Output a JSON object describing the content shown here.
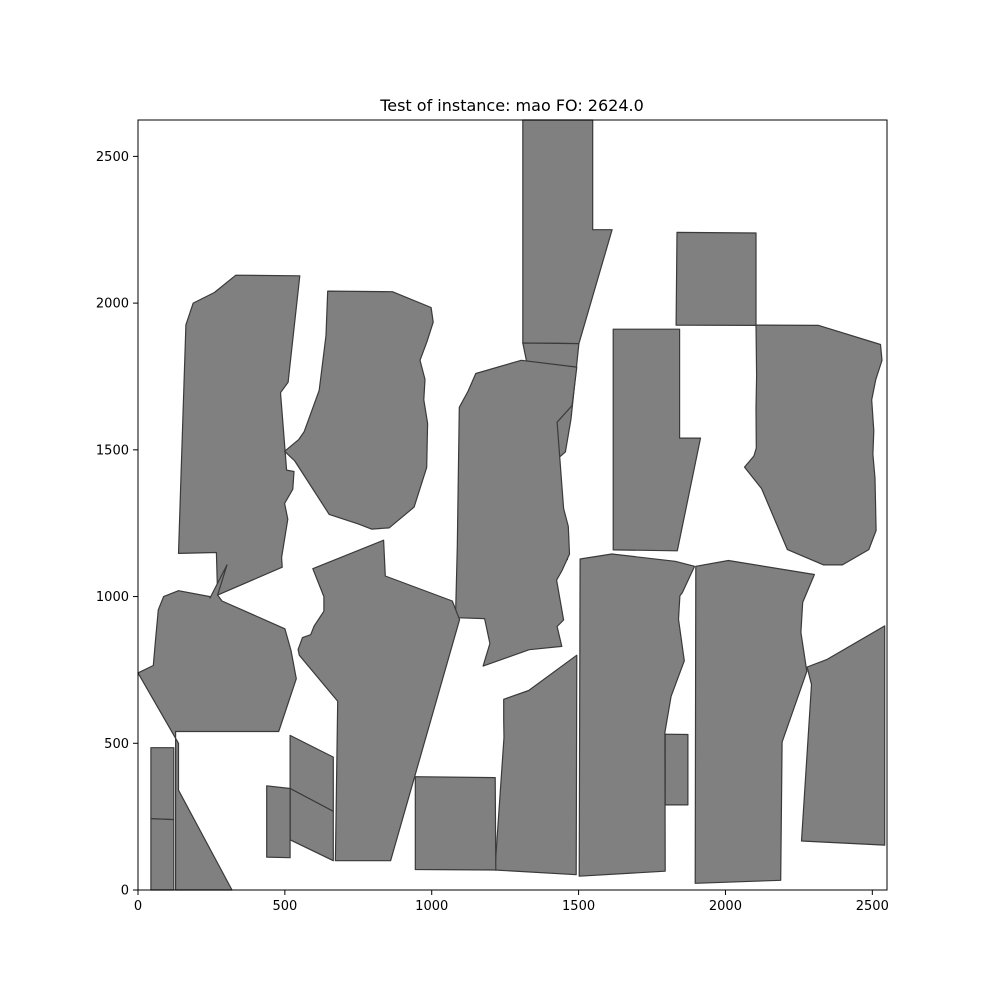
{
  "chart_data": {
    "type": "polygon",
    "title": "Test of instance: mao  FO: 2624.0",
    "xlabel": "",
    "ylabel": "",
    "xlim": [
      0,
      2550
    ],
    "ylim": [
      0,
      2624
    ],
    "grid": false,
    "x_ticks": [
      0,
      500,
      1000,
      1500,
      2000,
      2500
    ],
    "y_ticks": [
      0,
      500,
      1000,
      1500,
      2000,
      2500
    ],
    "x_tick_labels": [
      "0",
      "500",
      "1000",
      "1500",
      "2000",
      "2500"
    ],
    "y_tick_labels": [
      "0",
      "500",
      "1000",
      "1500",
      "2000",
      "2500"
    ],
    "colors": {
      "fill": "#808080",
      "edge": "#3a3a3a",
      "frame": "#000000",
      "background": "#ffffff"
    },
    "polygons": [
      [
        [
          1310,
          2624
        ],
        [
          1548,
          2624
        ],
        [
          1548,
          2250
        ],
        [
          1614,
          2250
        ],
        [
          1501,
          1862
        ],
        [
          1310,
          1864
        ]
      ],
      [
        [
          1835,
          2241
        ],
        [
          2104,
          2239
        ],
        [
          2104,
          1924
        ],
        [
          1832,
          1925
        ]
      ],
      [
        [
          2104,
          1925
        ],
        [
          2317,
          1924
        ],
        [
          2528,
          1859
        ],
        [
          2533,
          1805
        ],
        [
          2512,
          1740
        ],
        [
          2498,
          1670
        ],
        [
          2505,
          1565
        ],
        [
          2502,
          1485
        ],
        [
          2509,
          1403
        ],
        [
          2513,
          1225
        ],
        [
          2488,
          1160
        ],
        [
          2398,
          1108
        ],
        [
          2334,
          1108
        ],
        [
          2211,
          1160
        ],
        [
          2123,
          1368
        ],
        [
          2065,
          1441
        ],
        [
          2097,
          1479
        ],
        [
          2105,
          1506
        ],
        [
          2104,
          1642
        ],
        [
          2106,
          1752
        ]
      ],
      [
        [
          1618,
          1911
        ],
        [
          1844,
          1911
        ],
        [
          1844,
          1540
        ],
        [
          1915,
          1540
        ],
        [
          1836,
          1156
        ],
        [
          1618,
          1159
        ]
      ],
      [
        [
          1310,
          1864
        ],
        [
          1501,
          1862
        ],
        [
          1474,
          1605
        ],
        [
          1455,
          1493
        ],
        [
          1423,
          1465
        ],
        [
          1441,
          1211
        ],
        [
          1466,
          1204
        ],
        [
          1462,
          1126
        ],
        [
          1613,
          1145
        ],
        [
          1829,
          1130
        ],
        [
          1895,
          1103
        ],
        [
          1853,
          1013
        ],
        [
          1848,
          1003
        ],
        [
          1840,
          923
        ],
        [
          1860,
          781
        ],
        [
          1813,
          660
        ],
        [
          1729,
          545
        ],
        [
          1729,
          280
        ],
        [
          1813,
          280
        ],
        [
          1813,
          71
        ],
        [
          1792,
          64
        ],
        [
          1610,
          64
        ],
        [
          1502,
          47
        ],
        [
          1487,
          44
        ],
        [
          1432,
          44
        ],
        [
          1387,
          44
        ],
        [
          1299,
          45
        ],
        [
          1266,
          62
        ],
        [
          1221,
          62
        ],
        [
          970,
          57
        ],
        [
          960,
          57
        ],
        [
          889,
          57
        ],
        [
          870,
          57
        ],
        [
          810,
          43
        ],
        [
          746,
          49
        ],
        [
          680,
          46
        ],
        [
          650,
          46
        ],
        [
          620,
          44
        ],
        [
          611,
          44
        ],
        [
          550,
          48
        ],
        [
          471,
          45
        ],
        [
          471,
          57
        ],
        [
          482,
          46
        ],
        [
          502,
          46
        ],
        [
          515,
          44
        ],
        [
          509,
          45
        ],
        [
          509,
          44
        ],
        [
          471,
          40
        ],
        [
          449,
          40
        ],
        [
          416,
          40
        ],
        [
          387,
          40
        ],
        [
          371,
          40
        ],
        [
          357,
          40
        ],
        [
          328,
          40
        ],
        [
          320,
          30
        ],
        [
          229,
          0
        ],
        [
          128,
          0
        ],
        [
          50,
          0
        ],
        [
          48,
          79
        ],
        [
          48,
          145
        ],
        [
          48,
          208
        ],
        [
          50,
          280
        ],
        [
          54,
          345
        ],
        [
          56,
          392
        ],
        [
          56,
          457
        ],
        [
          56,
          490
        ],
        [
          64,
          500
        ],
        [
          96,
          500
        ],
        [
          125,
          500
        ],
        [
          132,
          500
        ],
        [
          136,
          555
        ],
        [
          116,
          589
        ],
        [
          106,
          620
        ],
        [
          70,
          700
        ],
        [
          73,
          763
        ],
        [
          50,
          851
        ],
        [
          95,
          963
        ],
        [
          162,
          1008
        ],
        [
          303,
          1105
        ],
        [
          250,
          1050
        ]
      ],
      [
        [
          303,
          1105
        ],
        [
          250,
          1050
        ]
      ]
    ]
  }
}
